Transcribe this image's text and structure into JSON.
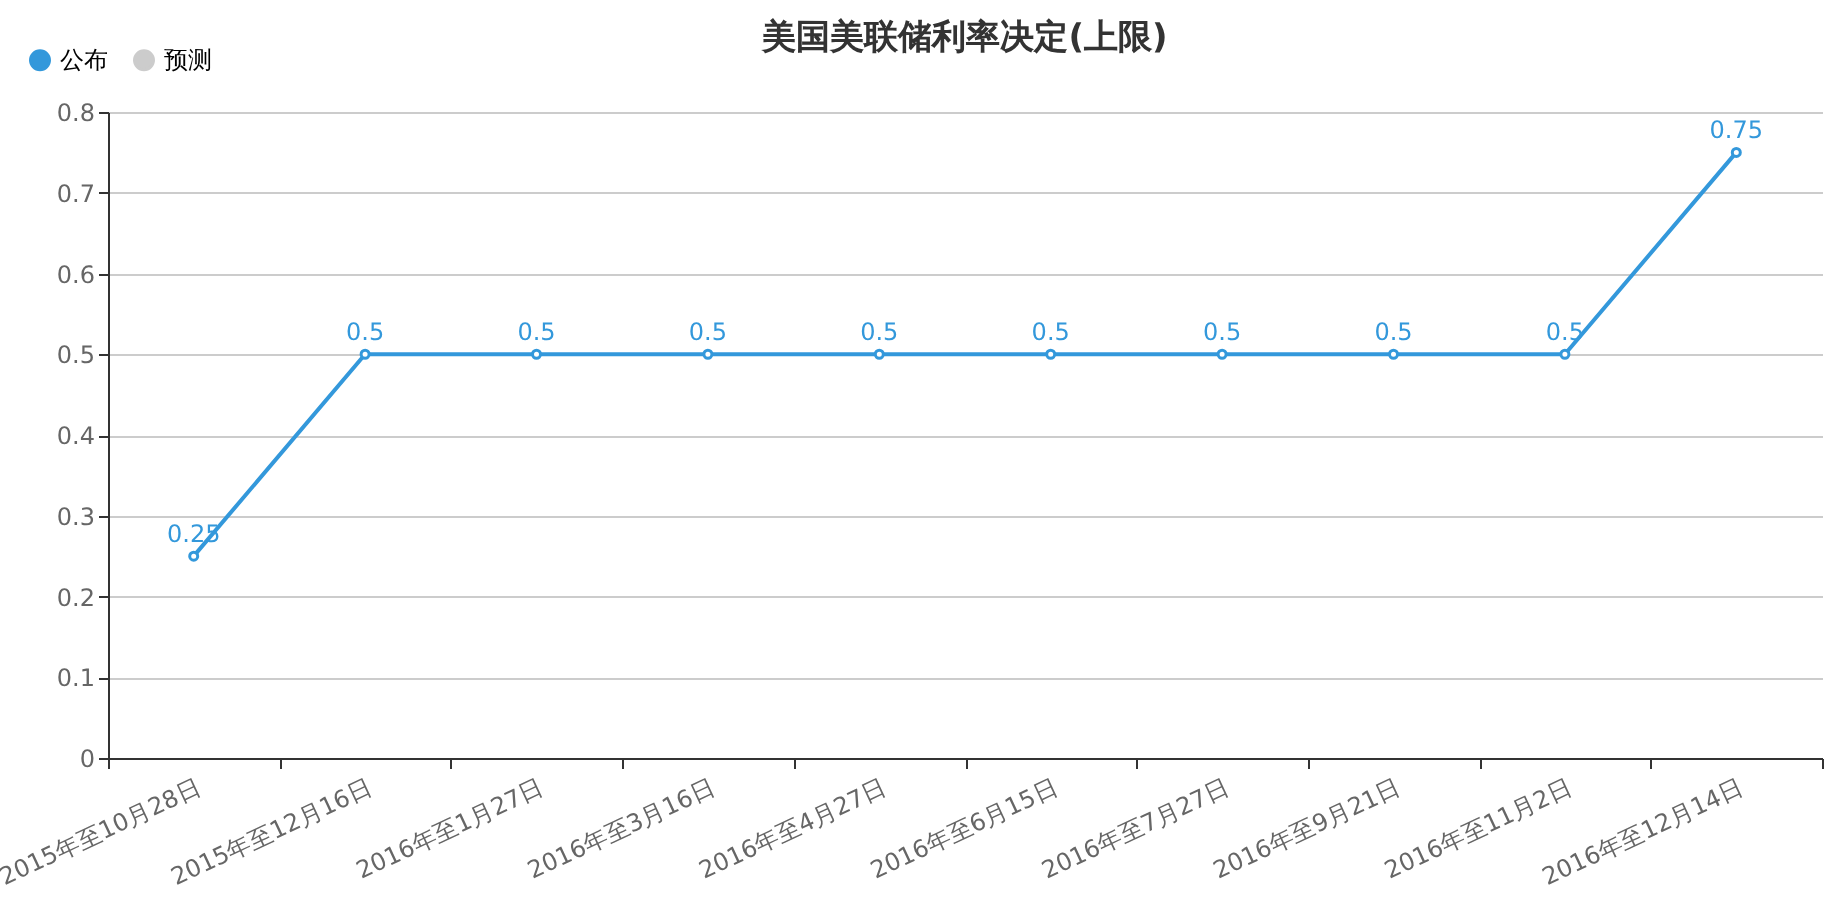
{
  "chart_data": {
    "type": "line",
    "title": "美国美联储利率决定(上限)",
    "categories": [
      "2015年至10月28日",
      "2015年至12月16日",
      "2016年至1月27日",
      "2016年至3月16日",
      "2016年至4月27日",
      "2016年至6月15日",
      "2016年至7月27日",
      "2016年至9月21日",
      "2016年至11月2日",
      "2016年至12月14日"
    ],
    "series": [
      {
        "name": "公布",
        "color": "#3398db",
        "values": [
          0.25,
          0.5,
          0.5,
          0.5,
          0.5,
          0.5,
          0.5,
          0.5,
          0.5,
          0.75
        ]
      },
      {
        "name": "预测",
        "color": "#cccccc",
        "values": [
          null,
          null,
          null,
          null,
          null,
          null,
          null,
          null,
          null,
          null
        ]
      }
    ],
    "ylim": [
      0,
      0.8
    ],
    "yticks": [
      0,
      0.1,
      0.2,
      0.3,
      0.4,
      0.5,
      0.6,
      0.7,
      0.8
    ],
    "grid": "y",
    "legend": "top left",
    "marker": "circle",
    "data_labels": true
  }
}
